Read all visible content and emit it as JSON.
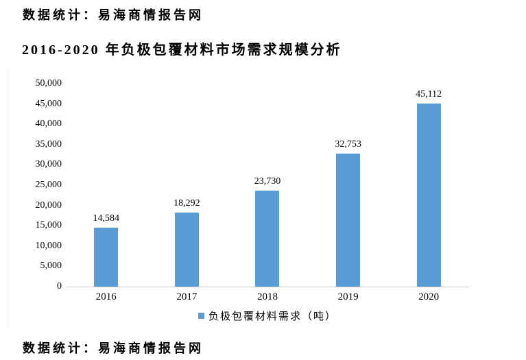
{
  "header": {
    "source_label": "数据统计：易海商情报告网"
  },
  "footer": {
    "source_label": "数据统计：易海商情报告网"
  },
  "chart_data": {
    "type": "bar",
    "title": "2016-2020 年负极包覆材料市场需求规模分析",
    "categories": [
      "2016",
      "2017",
      "2018",
      "2019",
      "2020"
    ],
    "values": [
      14584,
      18292,
      23730,
      32753,
      45112
    ],
    "value_labels": [
      "14,584",
      "18,292",
      "23,730",
      "32,753",
      "45,112"
    ],
    "series_name": "负极包覆材料需求（吨）",
    "xlabel": "",
    "ylabel": "",
    "ylim": [
      0,
      50000
    ],
    "ytick_interval": 5000,
    "ytick_labels": [
      "0",
      "5,000",
      "10,000",
      "15,000",
      "20,000",
      "25,000",
      "30,000",
      "35,000",
      "40,000",
      "45,000",
      "50,000"
    ],
    "grid": false,
    "legend_position": "bottom",
    "colors": {
      "bar": "#5B9BD5",
      "legend_marker": "#5B9BD5",
      "axis_line": "#C9C9C9",
      "text": "#000000"
    }
  }
}
